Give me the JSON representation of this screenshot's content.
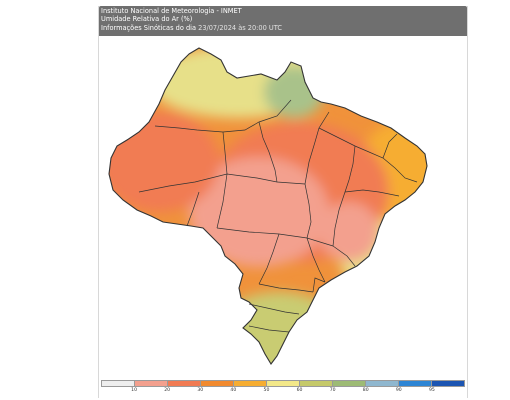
{
  "header": {
    "line1": "Instituto Nacional de Meteorologia - INMET",
    "line2": "Umidade Relativa do Ar (%)",
    "line3_prefix": "Informações Sinóticas do dia",
    "line3_date": "23/07/2024 às 20:00 UTC"
  },
  "legend": {
    "colors": [
      "#eeeeee",
      "#f3a08e",
      "#f17b53",
      "#f18a2f",
      "#f6ad32",
      "#f3e889",
      "#c5c96a",
      "#9dbb75",
      "#8fb7cf",
      "#2d85d4",
      "#1c55b2"
    ],
    "ticks": [
      "10",
      "20",
      "30",
      "40",
      "50",
      "60",
      "70",
      "80",
      "90",
      "95"
    ]
  },
  "map": {
    "colors": {
      "outline": "#333333",
      "dry_core": "#f3a08e",
      "very_dry": "#f17b53",
      "dry": "#f0923b",
      "moderate": "#f6ad32",
      "humid": "#e7e089",
      "humid_olive": "#c9cc72",
      "wet": "#a9c28a",
      "very_wet": "#8db4c8"
    }
  }
}
